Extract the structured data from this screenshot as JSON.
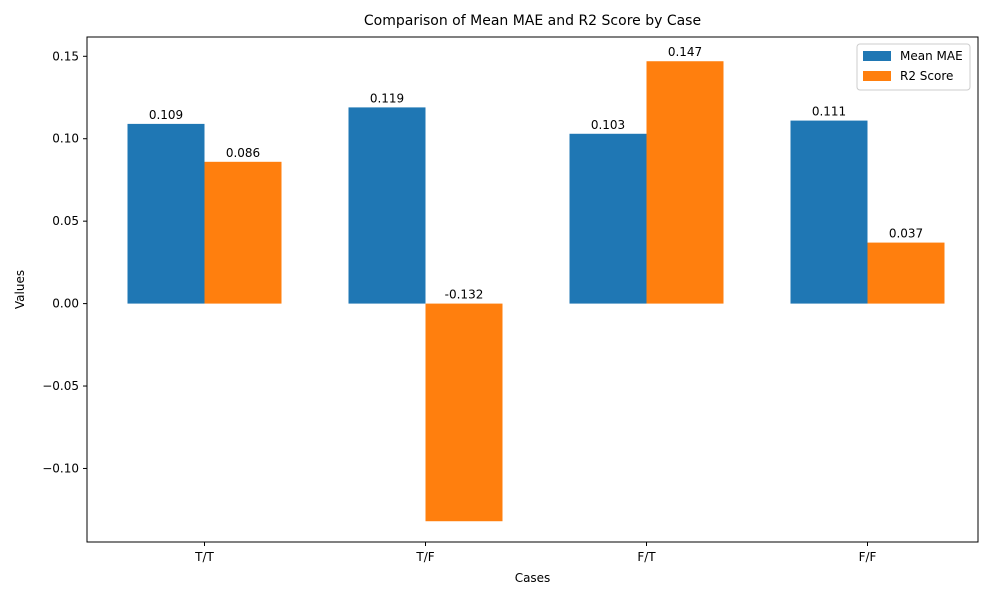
{
  "chart_data": {
    "type": "bar",
    "title": "Comparison of Mean MAE and R2 Score by Case",
    "xlabel": "Cases",
    "ylabel": "Values",
    "categories": [
      "T/T",
      "T/F",
      "F/T",
      "F/F"
    ],
    "series": [
      {
        "name": "Mean MAE",
        "values": [
          0.109,
          0.119,
          0.103,
          0.111
        ],
        "color": "#1f77b4"
      },
      {
        "name": "R2 Score",
        "values": [
          0.086,
          -0.132,
          0.147,
          0.037
        ],
        "color": "#ff7f0e"
      }
    ],
    "ylim": [
      -0.1446,
      0.1617
    ],
    "yticks": [
      -0.1,
      -0.05,
      0.0,
      0.05,
      0.1,
      0.15
    ],
    "ytick_labels": [
      "−0.10",
      "−0.05",
      "0.00",
      "0.05",
      "0.10",
      "0.15"
    ],
    "data_labels": [
      [
        "0.109",
        "0.119",
        "0.103",
        "0.111"
      ],
      [
        "0.086",
        "-0.132",
        "0.147",
        "0.037"
      ]
    ],
    "grid": false,
    "legend_position": "top-right"
  }
}
